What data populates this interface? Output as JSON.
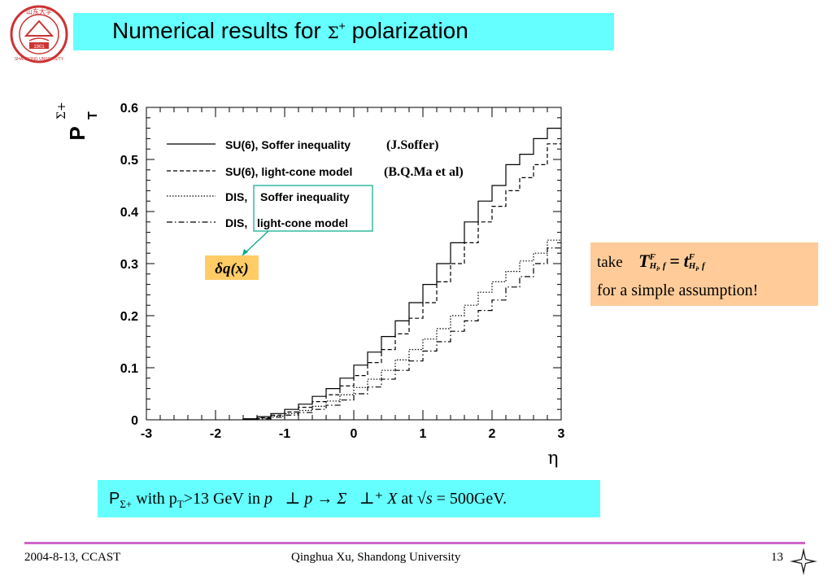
{
  "slide": {
    "title_pre": "Numerical results for ",
    "title_sigma": "Σ",
    "title_sup": "+",
    "title_post": " polarization"
  },
  "logo": {
    "text_top": "山东大学",
    "text_year": "1901",
    "text_bottom": "SHANDONG UNIVERSITY",
    "color": "#cc3333"
  },
  "assumption": {
    "take": "take",
    "formula_lhs": "T",
    "formula_rhs": "t",
    "sup": "F",
    "sub": "H",
    "sub_i": "i",
    "sub_f": ", f",
    "equals": "=",
    "line2": "for a simple assumption!"
  },
  "bottom": {
    "p": "P",
    "p_sub": "Σ+",
    "with": " with p",
    "pt_sub": "T",
    "cut": ">13 GeV in ",
    "reaction": "p⃗⊥ p → Σ⃗⊥⁺ X",
    "at": " at ",
    "sqrt": "√s",
    "energy": " = 500GeV."
  },
  "footer": {
    "date": "2004-8-13,  CCAST",
    "author": "Qinghua Xu, Shandong University",
    "page": "13"
  },
  "chart_data": {
    "type": "line",
    "ylabel": "P",
    "ylabel_sub": "T",
    "ylabel_sup": "Σ+",
    "xlabel": "η",
    "xlim": [
      -3,
      3
    ],
    "ylim": [
      0,
      0.6
    ],
    "xticks": [
      "-3",
      "-2",
      "-1",
      "0",
      "1",
      "2",
      "3"
    ],
    "yticks": [
      "0",
      "0.1",
      "0.2",
      "0.3",
      "0.4",
      "0.5",
      "0.6"
    ],
    "x": [
      -1.5,
      -1.3,
      -1.1,
      -0.9,
      -0.7,
      -0.5,
      -0.3,
      -0.1,
      0.1,
      0.3,
      0.5,
      0.7,
      0.9,
      1.1,
      1.3,
      1.5,
      1.7,
      1.9,
      2.1,
      2.3,
      2.5,
      2.7,
      2.9
    ],
    "series": [
      {
        "name": "SU(6), Soffer inequality",
        "note": "(J.Soffer)",
        "style": "solid",
        "values": [
          0.002,
          0.006,
          0.012,
          0.02,
          0.03,
          0.045,
          0.06,
          0.08,
          0.105,
          0.13,
          0.16,
          0.19,
          0.225,
          0.26,
          0.3,
          0.34,
          0.38,
          0.42,
          0.45,
          0.49,
          0.51,
          0.54,
          0.56
        ]
      },
      {
        "name": "SU(6), light-cone model",
        "note": "(B.Q.Ma et al)",
        "style": "dashed",
        "values": [
          0.001,
          0.004,
          0.009,
          0.015,
          0.024,
          0.035,
          0.048,
          0.065,
          0.085,
          0.11,
          0.135,
          0.165,
          0.195,
          0.225,
          0.265,
          0.3,
          0.34,
          0.38,
          0.41,
          0.44,
          0.465,
          0.49,
          0.53
        ]
      },
      {
        "name": "Soffer inequality",
        "label_prefix": "DIS, ",
        "style": "dotted",
        "values": [
          0.001,
          0.003,
          0.007,
          0.012,
          0.018,
          0.026,
          0.036,
          0.048,
          0.062,
          0.078,
          0.095,
          0.115,
          0.135,
          0.155,
          0.175,
          0.2,
          0.22,
          0.245,
          0.265,
          0.285,
          0.305,
          0.32,
          0.345
        ]
      },
      {
        "name": "light-cone model",
        "label_prefix": "DIS, ",
        "style": "dashdot",
        "values": [
          0.001,
          0.002,
          0.005,
          0.009,
          0.014,
          0.02,
          0.028,
          0.038,
          0.05,
          0.063,
          0.078,
          0.095,
          0.113,
          0.132,
          0.15,
          0.17,
          0.19,
          0.21,
          0.23,
          0.255,
          0.275,
          0.3,
          0.33
        ]
      }
    ],
    "annotation": "δq(x)",
    "legend_placement": "top-left"
  }
}
